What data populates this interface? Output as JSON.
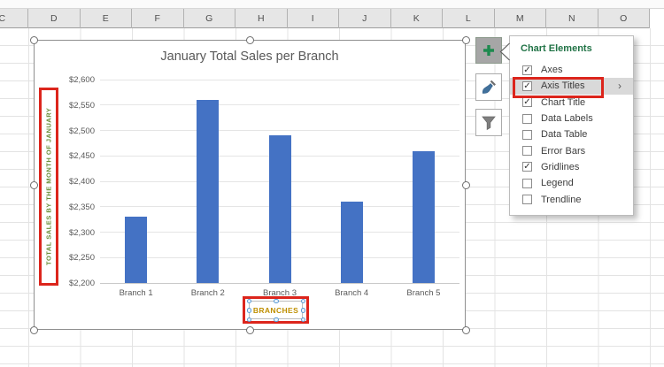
{
  "spreadsheet": {
    "column_headers": [
      "C",
      "D",
      "E",
      "F",
      "G",
      "H",
      "I",
      "J",
      "K",
      "L",
      "M",
      "N",
      "O"
    ]
  },
  "chart_data": {
    "type": "bar",
    "title": "January Total Sales per Branch",
    "categories": [
      "Branch 1",
      "Branch 2",
      "Branch 3",
      "Branch 4",
      "Branch 5"
    ],
    "values": [
      2330,
      2560,
      2490,
      2360,
      2460
    ],
    "xlabel": "BRANCHES",
    "ylabel": "TOTAL SALES BY THE MONTH OF JANUARY",
    "ylim": [
      2200,
      2600
    ],
    "ytick_step": 50,
    "ytick_prefix": "$",
    "grid": true,
    "legend": "none",
    "bar_color": "#4472C4"
  },
  "chart_elements_panel": {
    "title": "Chart Elements",
    "chevron_glyph": "›",
    "check_glyph": "✓",
    "items": [
      {
        "label": "Axes",
        "checked": true,
        "highlighted": false,
        "has_submenu": false
      },
      {
        "label": "Axis Titles",
        "checked": true,
        "highlighted": true,
        "has_submenu": true
      },
      {
        "label": "Chart Title",
        "checked": true,
        "highlighted": false,
        "has_submenu": false
      },
      {
        "label": "Data Labels",
        "checked": false,
        "highlighted": false,
        "has_submenu": false
      },
      {
        "label": "Data Table",
        "checked": false,
        "highlighted": false,
        "has_submenu": false
      },
      {
        "label": "Error Bars",
        "checked": false,
        "highlighted": false,
        "has_submenu": false
      },
      {
        "label": "Gridlines",
        "checked": true,
        "highlighted": false,
        "has_submenu": false
      },
      {
        "label": "Legend",
        "checked": false,
        "highlighted": false,
        "has_submenu": false
      },
      {
        "label": "Trendline",
        "checked": false,
        "highlighted": false,
        "has_submenu": false
      }
    ]
  },
  "side_buttons": {
    "add_element_icon": "plus-icon",
    "styles_icon": "paintbrush-icon",
    "filters_icon": "funnel-icon"
  },
  "colors": {
    "bar_blue": "#4472C4",
    "annotation_red": "#DC251C",
    "axis_title_green": "#6A8F3A",
    "x_axis_title_orange": "#BF8F00",
    "panel_heading_green": "#217346",
    "text_gray": "#595959"
  }
}
